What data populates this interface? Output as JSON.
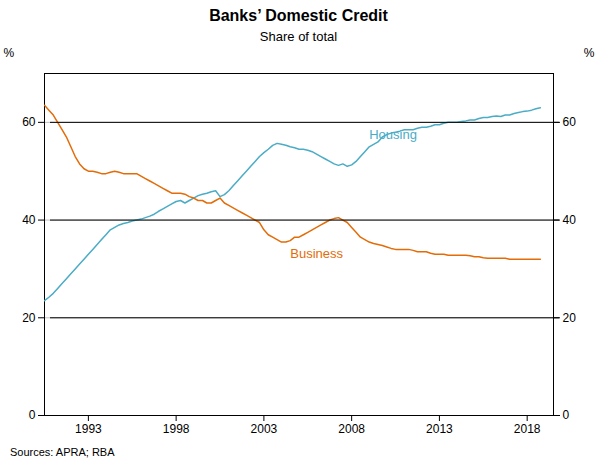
{
  "chart_data": {
    "type": "line",
    "title": "Banks’ Domestic Credit",
    "subtitle": "Share of total",
    "ylabel": "%",
    "y2label": "%",
    "source": "Sources:  APRA; RBA",
    "xlim": [
      1990.5,
      2019.5
    ],
    "xticks": [
      1993,
      1998,
      2003,
      2008,
      2013,
      2018
    ],
    "ylim": [
      0,
      70
    ],
    "yticks": [
      0,
      20,
      40,
      60
    ],
    "y2lim": [
      0,
      70
    ],
    "y2ticks": [
      0,
      20,
      40,
      60
    ],
    "grid": "y",
    "x": [
      1990.5,
      1990.75,
      1991.0,
      1991.25,
      1991.5,
      1991.75,
      1992.0,
      1992.25,
      1992.5,
      1992.75,
      1993.0,
      1993.25,
      1993.5,
      1993.75,
      1994.0,
      1994.25,
      1994.5,
      1994.75,
      1995.0,
      1995.25,
      1995.5,
      1995.75,
      1996.0,
      1996.25,
      1996.5,
      1996.75,
      1997.0,
      1997.25,
      1997.5,
      1997.75,
      1998.0,
      1998.25,
      1998.5,
      1998.75,
      1999.0,
      1999.25,
      1999.5,
      1999.75,
      2000.0,
      2000.25,
      2000.5,
      2000.75,
      2001.0,
      2001.25,
      2001.5,
      2001.75,
      2002.0,
      2002.25,
      2002.5,
      2002.75,
      2003.0,
      2003.25,
      2003.5,
      2003.75,
      2004.0,
      2004.25,
      2004.5,
      2004.75,
      2005.0,
      2005.25,
      2005.5,
      2005.75,
      2006.0,
      2006.25,
      2006.5,
      2006.75,
      2007.0,
      2007.25,
      2007.5,
      2007.75,
      2008.0,
      2008.25,
      2008.5,
      2008.75,
      2009.0,
      2009.25,
      2009.5,
      2009.75,
      2010.0,
      2010.25,
      2010.5,
      2010.75,
      2011.0,
      2011.25,
      2011.5,
      2011.75,
      2012.0,
      2012.25,
      2012.5,
      2012.75,
      2013.0,
      2013.25,
      2013.5,
      2013.75,
      2014.0,
      2014.25,
      2014.5,
      2014.75,
      2015.0,
      2015.25,
      2015.5,
      2015.75,
      2016.0,
      2016.25,
      2016.5,
      2016.75,
      2017.0,
      2017.25,
      2017.5,
      2017.75,
      2018.0,
      2018.25,
      2018.5,
      2018.75
    ],
    "series": [
      {
        "name": "Housing",
        "color": "#4BACC6",
        "label_x": 2009.0,
        "label_y": 57.5,
        "values": [
          23.5,
          24.2,
          25.0,
          26.0,
          27.0,
          28.0,
          29.0,
          30.0,
          31.0,
          32.0,
          33.0,
          34.0,
          35.0,
          36.0,
          37.0,
          38.0,
          38.5,
          39.0,
          39.3,
          39.5,
          39.8,
          40.0,
          40.2,
          40.5,
          40.8,
          41.2,
          41.8,
          42.3,
          42.8,
          43.3,
          43.8,
          44.0,
          43.5,
          44.0,
          44.5,
          45.0,
          45.3,
          45.5,
          45.8,
          46.0,
          44.8,
          45.2,
          46.0,
          47.0,
          48.0,
          49.0,
          50.0,
          51.0,
          52.0,
          53.0,
          53.8,
          54.5,
          55.3,
          55.7,
          55.5,
          55.3,
          55.0,
          54.8,
          54.5,
          54.5,
          54.3,
          54.0,
          53.5,
          53.0,
          52.5,
          52.0,
          51.5,
          51.2,
          51.5,
          51.0,
          51.3,
          52.0,
          53.0,
          54.0,
          55.0,
          55.5,
          56.0,
          57.0,
          57.5,
          57.8,
          58.0,
          58.2,
          58.5,
          58.5,
          58.5,
          58.8,
          59.0,
          59.0,
          59.2,
          59.5,
          59.5,
          59.8,
          60.0,
          60.0,
          60.0,
          60.2,
          60.3,
          60.5,
          60.5,
          60.8,
          61.0,
          61.0,
          61.2,
          61.3,
          61.2,
          61.5,
          61.5,
          61.8,
          62.0,
          62.2,
          62.3,
          62.5,
          62.8,
          63.0
        ]
      },
      {
        "name": "Business",
        "color": "#E36C09",
        "label_x": 2004.5,
        "label_y": 33.0,
        "values": [
          63.5,
          62.5,
          61.5,
          60.0,
          58.5,
          57.0,
          55.0,
          53.0,
          51.5,
          50.5,
          50.0,
          50.0,
          49.8,
          49.5,
          49.5,
          49.8,
          50.0,
          49.8,
          49.5,
          49.5,
          49.5,
          49.5,
          49.0,
          48.5,
          48.0,
          47.5,
          47.0,
          46.5,
          46.0,
          45.5,
          45.5,
          45.5,
          45.3,
          44.8,
          44.5,
          44.0,
          44.0,
          43.5,
          43.5,
          44.0,
          44.5,
          43.5,
          43.0,
          42.5,
          42.0,
          41.5,
          41.0,
          40.5,
          40.0,
          39.5,
          38.0,
          37.0,
          36.5,
          36.0,
          35.5,
          35.5,
          35.8,
          36.5,
          36.5,
          37.0,
          37.5,
          38.0,
          38.5,
          39.0,
          39.5,
          40.0,
          40.3,
          40.5,
          40.0,
          39.5,
          38.5,
          37.5,
          36.5,
          36.0,
          35.5,
          35.2,
          35.0,
          34.8,
          34.5,
          34.2,
          34.0,
          34.0,
          34.0,
          34.0,
          33.8,
          33.5,
          33.5,
          33.5,
          33.2,
          33.0,
          33.0,
          33.0,
          32.8,
          32.8,
          32.8,
          32.8,
          32.8,
          32.7,
          32.5,
          32.5,
          32.3,
          32.2,
          32.2,
          32.2,
          32.2,
          32.2,
          32.0,
          32.0,
          32.0,
          32.0,
          32.0,
          32.0,
          32.0,
          32.0
        ]
      }
    ]
  }
}
